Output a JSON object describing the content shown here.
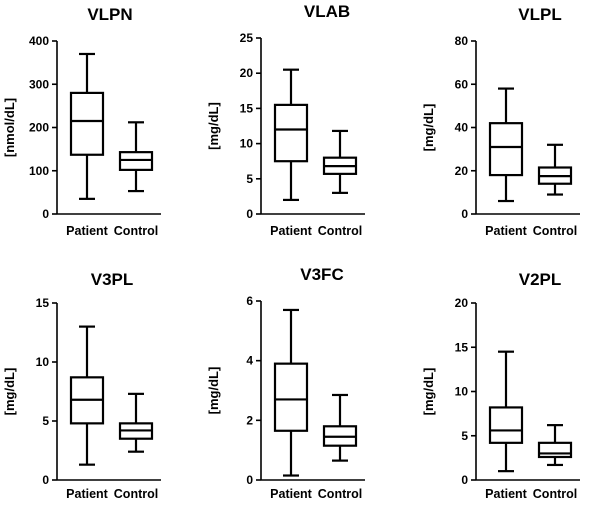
{
  "chart_data": [
    {
      "type": "box",
      "title": "VLPN",
      "ylabel": "[nmol/dL]",
      "ylim": [
        0,
        400
      ],
      "yticks": [
        0,
        100,
        200,
        300,
        400
      ],
      "categories": [
        "Patient",
        "Control"
      ],
      "boxes": [
        {
          "name": "Patient",
          "min": 35,
          "q1": 137,
          "median": 215,
          "q3": 280,
          "max": 370
        },
        {
          "name": "Control",
          "min": 53,
          "q1": 102,
          "median": 125,
          "q3": 143,
          "max": 212
        }
      ]
    },
    {
      "type": "box",
      "title": "VLAB",
      "ylabel": "[mg/dL]",
      "ylim": [
        0,
        25
      ],
      "yticks": [
        0,
        5,
        10,
        15,
        20,
        25
      ],
      "categories": [
        "Patient",
        "Control"
      ],
      "boxes": [
        {
          "name": "Patient",
          "min": 2,
          "q1": 7.5,
          "median": 12,
          "q3": 15.5,
          "max": 20.5
        },
        {
          "name": "Control",
          "min": 3,
          "q1": 5.7,
          "median": 6.8,
          "q3": 8,
          "max": 11.8
        }
      ]
    },
    {
      "type": "box",
      "title": "VLPL",
      "ylabel": "[mg/dL]",
      "ylim": [
        0,
        80
      ],
      "yticks": [
        0,
        20,
        40,
        60,
        80
      ],
      "categories": [
        "Patient",
        "Control"
      ],
      "boxes": [
        {
          "name": "Patient",
          "min": 6,
          "q1": 18,
          "median": 31,
          "q3": 42,
          "max": 58
        },
        {
          "name": "Control",
          "min": 9,
          "q1": 14,
          "median": 17.5,
          "q3": 21.5,
          "max": 32
        }
      ]
    },
    {
      "type": "box",
      "title": "V3PL",
      "ylabel": "[mg/dL]",
      "ylim": [
        0,
        15
      ],
      "yticks": [
        0,
        5,
        10,
        15
      ],
      "categories": [
        "Patient",
        "Control"
      ],
      "boxes": [
        {
          "name": "Patient",
          "min": 1.3,
          "q1": 4.8,
          "median": 6.8,
          "q3": 8.7,
          "max": 13
        },
        {
          "name": "Control",
          "min": 2.4,
          "q1": 3.5,
          "median": 4.2,
          "q3": 4.8,
          "max": 7.3
        }
      ]
    },
    {
      "type": "box",
      "title": "V3FC",
      "ylabel": "[mg/dL]",
      "ylim": [
        0,
        6
      ],
      "yticks": [
        0,
        2,
        4,
        6
      ],
      "categories": [
        "Patient",
        "Control"
      ],
      "boxes": [
        {
          "name": "Patient",
          "min": 0.15,
          "q1": 1.65,
          "median": 2.7,
          "q3": 3.9,
          "max": 5.7
        },
        {
          "name": "Control",
          "min": 0.65,
          "q1": 1.15,
          "median": 1.45,
          "q3": 1.8,
          "max": 2.85
        }
      ]
    },
    {
      "type": "box",
      "title": "V2PL",
      "ylabel": "[mg/dL]",
      "ylim": [
        0,
        20
      ],
      "yticks": [
        0,
        5,
        10,
        15,
        20
      ],
      "categories": [
        "Patient",
        "Control"
      ],
      "boxes": [
        {
          "name": "Patient",
          "min": 1,
          "q1": 4.2,
          "median": 5.6,
          "q3": 8.2,
          "max": 14.5
        },
        {
          "name": "Control",
          "min": 1.7,
          "q1": 2.6,
          "median": 3,
          "q3": 4.2,
          "max": 6.2
        }
      ]
    }
  ]
}
